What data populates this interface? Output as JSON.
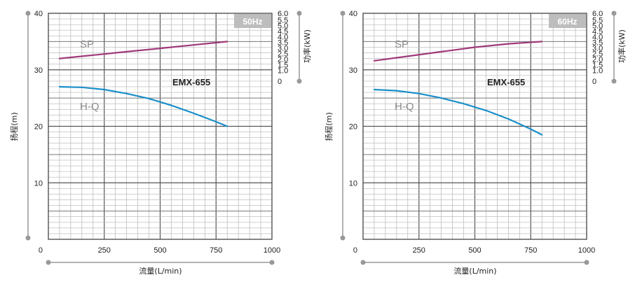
{
  "chart_data": [
    {
      "type": "line",
      "frequency": "50Hz",
      "model": "EMX-655",
      "xlabel": "流量(L/min)",
      "ylabel": "扬程(m)",
      "y2label": "功率(kW)",
      "xlim": [
        0,
        1000
      ],
      "ylim": [
        0,
        40
      ],
      "y2lim": [
        0,
        6.0
      ],
      "xticks": [
        "0",
        "250",
        "500",
        "750",
        "1000"
      ],
      "yticks": [
        "0",
        "10",
        "20",
        "30",
        "40"
      ],
      "y2ticks": [
        "0",
        "1.0",
        "1.5",
        "2.0",
        "2.5",
        "3.0",
        "3.5",
        "4.0",
        "4.5",
        "5.0",
        "5.5",
        "6.0"
      ],
      "grid": true,
      "series": [
        {
          "name": "H-Q",
          "axis": "left",
          "color": "#1a8fc9",
          "x": [
            50,
            150,
            250,
            350,
            450,
            550,
            650,
            750,
            800
          ],
          "y": [
            27.0,
            26.9,
            26.5,
            25.8,
            24.9,
            23.7,
            22.3,
            20.8,
            20.0
          ]
        },
        {
          "name": "SP",
          "axis": "right",
          "color": "#a03a7a",
          "x": [
            50,
            200,
            350,
            500,
            650,
            800
          ],
          "y": [
            2.0,
            2.3,
            2.6,
            2.9,
            3.2,
            3.5
          ]
        }
      ]
    },
    {
      "type": "line",
      "frequency": "60Hz",
      "model": "EMX-655",
      "xlabel": "流量(L/min)",
      "ylabel": "扬程(m)",
      "y2label": "功率(kW)",
      "xlim": [
        0,
        1000
      ],
      "ylim": [
        0,
        40
      ],
      "y2lim": [
        0,
        6.0
      ],
      "xticks": [
        "0",
        "250",
        "500",
        "750",
        "1000"
      ],
      "yticks": [
        "0",
        "10",
        "20",
        "30",
        "40"
      ],
      "y2ticks": [
        "0",
        "1.0",
        "1.5",
        "2.0",
        "2.5",
        "3.0",
        "3.5",
        "4.0",
        "4.5",
        "5.0",
        "5.5",
        "6.0"
      ],
      "grid": true,
      "series": [
        {
          "name": "H-Q",
          "axis": "left",
          "color": "#1a8fc9",
          "x": [
            50,
            150,
            250,
            350,
            450,
            550,
            650,
            750,
            800
          ],
          "y": [
            26.5,
            26.3,
            25.8,
            25.0,
            24.0,
            22.8,
            21.3,
            19.5,
            18.5
          ]
        },
        {
          "name": "SP",
          "axis": "right",
          "color": "#a03a7a",
          "x": [
            50,
            200,
            350,
            500,
            650,
            800
          ],
          "y": [
            1.8,
            2.2,
            2.6,
            3.0,
            3.3,
            3.5
          ]
        }
      ]
    }
  ]
}
